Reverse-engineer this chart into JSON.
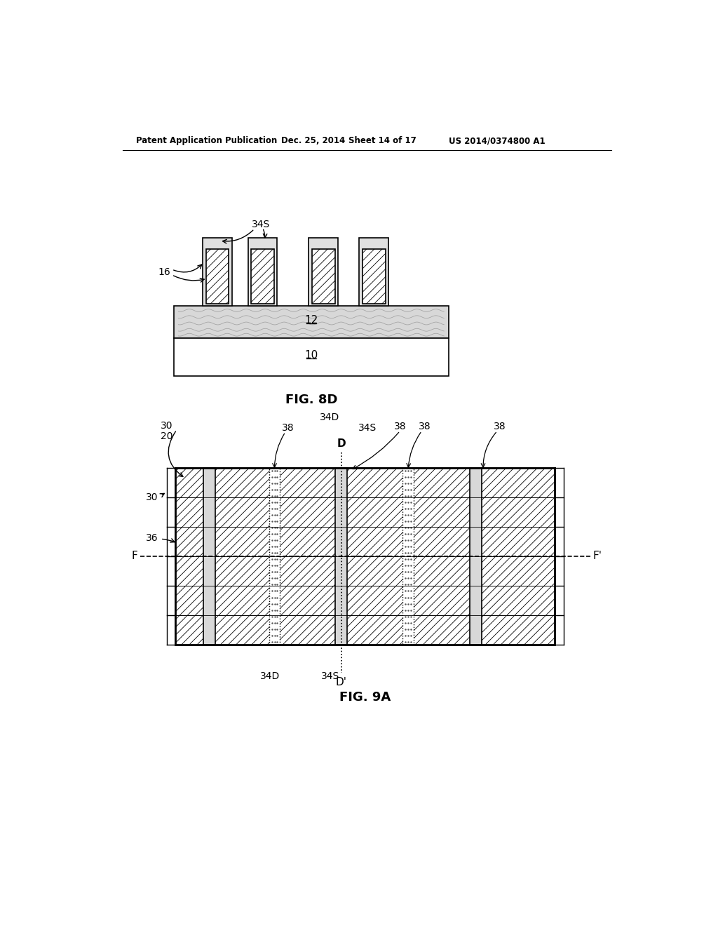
{
  "bg_color": "#ffffff",
  "header_text": "Patent Application Publication",
  "header_date": "Dec. 25, 2014",
  "header_sheet": "Sheet 14 of 17",
  "header_patent": "US 2014/0374800 A1",
  "fig8d_label": "FIG. 8D",
  "fig9a_label": "FIG. 9A",
  "lc": "#000000",
  "gray_light": "#d4d4d4",
  "gray_wavy": "#c8c8c8",
  "fin_hatch_color": "#444444",
  "col_dotted_color": "#888888"
}
